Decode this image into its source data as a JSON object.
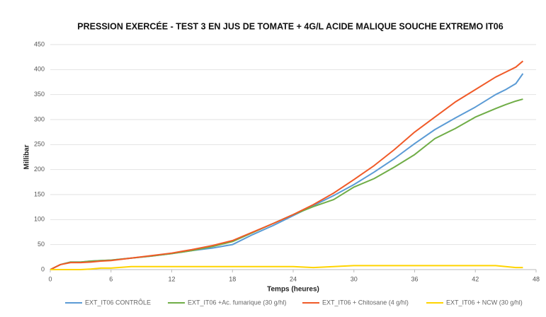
{
  "chart_data": {
    "type": "line",
    "title": "PRESSION EXERCÉE - TEST 3 EN JUS DE TOMATE + 4G/L ACIDE MALIQUE SOUCHE EXTREMO IT06",
    "x_label": "Temps (heures)",
    "y_label": "Millibar",
    "x": [
      0,
      1,
      2,
      3,
      4,
      5,
      6,
      8,
      10,
      12,
      14,
      16,
      18,
      20,
      22,
      24,
      26,
      28,
      30,
      32,
      34,
      36,
      38,
      40,
      42,
      44,
      45,
      46,
      46.7
    ],
    "series": [
      {
        "name": "EXT_IT06 CONTRÔLE",
        "color": "#5b9bd5",
        "values": [
          0,
          10,
          15,
          15,
          17,
          18,
          19,
          23,
          27,
          32,
          38,
          43,
          50,
          70,
          88,
          108,
          128,
          148,
          170,
          195,
          222,
          252,
          280,
          303,
          325,
          350,
          360,
          372,
          392
        ]
      },
      {
        "name": "EXT_IT06 +Ac. fumarique (30 g/hl)",
        "color": "#70ad47",
        "values": [
          0,
          10,
          15,
          15,
          17,
          18,
          19,
          23,
          27,
          32,
          38,
          46,
          56,
          74,
          92,
          110,
          126,
          140,
          165,
          182,
          205,
          230,
          262,
          282,
          305,
          322,
          330,
          337,
          341
        ]
      },
      {
        "name": "EXT_IT06 + Chitosane (4 g/hl)",
        "color": "#f05a28",
        "values": [
          0,
          10,
          14,
          14,
          15,
          17,
          18,
          23,
          28,
          33,
          40,
          48,
          58,
          75,
          92,
          110,
          130,
          153,
          180,
          208,
          240,
          275,
          305,
          335,
          360,
          385,
          395,
          405,
          417
        ]
      },
      {
        "name": "EXT_IT06 + NCW (30 g/hl)",
        "color": "#ffd400",
        "values": [
          0,
          0,
          0,
          0,
          1,
          3,
          3,
          6,
          6,
          6,
          6,
          6,
          6,
          6,
          6,
          6,
          4,
          6,
          8,
          8,
          8,
          8,
          8,
          8,
          8,
          8,
          6,
          4,
          4
        ]
      }
    ],
    "xlim": [
      0,
      48
    ],
    "xticks": [
      0,
      6,
      12,
      18,
      24,
      30,
      36,
      42,
      48
    ],
    "ylim": [
      0,
      450
    ],
    "yticks": [
      0,
      50,
      100,
      150,
      200,
      250,
      300,
      350,
      400,
      450
    ],
    "grid": true,
    "legend": "bottom"
  }
}
